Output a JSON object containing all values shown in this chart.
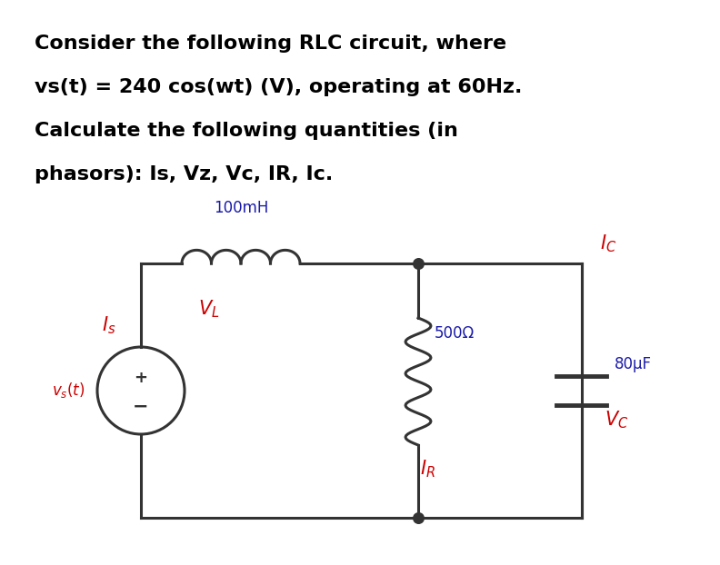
{
  "bg_color": "#ffffff",
  "text_lines": [
    "Consider the following RLC circuit, where",
    "vs(t) = 240 cos(wt) (V), operating at 60Hz.",
    "Calculate the following quantities (in",
    "phasors): Is, Vz, Vc, IR, Ic."
  ],
  "label_color_red": "#cc0000",
  "label_color_blue": "#1a1aaa",
  "label_color_black": "#222222",
  "wire_color": "#333333",
  "inductor_label": "100mH",
  "resistor_label": "500Ω",
  "capacitor_label": "80μF",
  "vl_label": "V_L",
  "vc_label": "V_C",
  "is_label": "I_s",
  "ic_label": "I_C",
  "ir_label": "I_R",
  "vs_label": "v_s(t)"
}
